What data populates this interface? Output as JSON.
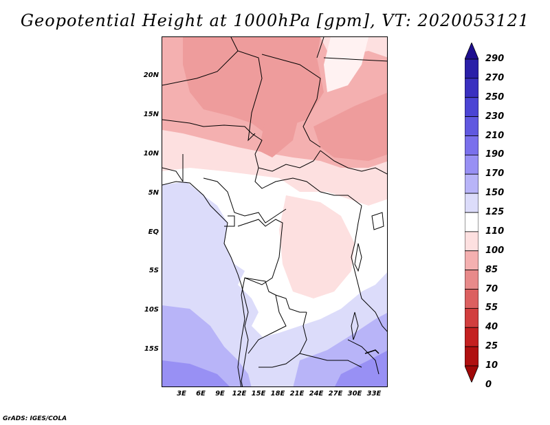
{
  "title": "Geopotential Height at 1000hPa [gpm], VT: 2020053121",
  "credit": "GrADS: IGES/COLA",
  "map": {
    "lat_labels": [
      "20N",
      "15N",
      "10N",
      "5N",
      "EQ",
      "5S",
      "10S",
      "15S"
    ],
    "lon_labels": [
      "3E",
      "6E",
      "9E",
      "12E",
      "15E",
      "18E",
      "21E",
      "24E",
      "27E",
      "30E",
      "33E"
    ]
  },
  "colorbar": {
    "labels": [
      "290",
      "270",
      "250",
      "230",
      "210",
      "190",
      "170",
      "150",
      "125",
      "110",
      "100",
      "85",
      "70",
      "55",
      "40",
      "25",
      "10",
      "0"
    ],
    "colors": [
      "#1e0f8f",
      "#2a1fa8",
      "#3a30c0",
      "#4b44d4",
      "#6058e0",
      "#7a70ec",
      "#9890f4",
      "#b8b4f8",
      "#dcdcfa",
      "#ffffff",
      "#fde0e0",
      "#f4b0b0",
      "#e88a8a",
      "#dc6060",
      "#d23e3e",
      "#c42020",
      "#b01010",
      "#a00808"
    ]
  }
}
